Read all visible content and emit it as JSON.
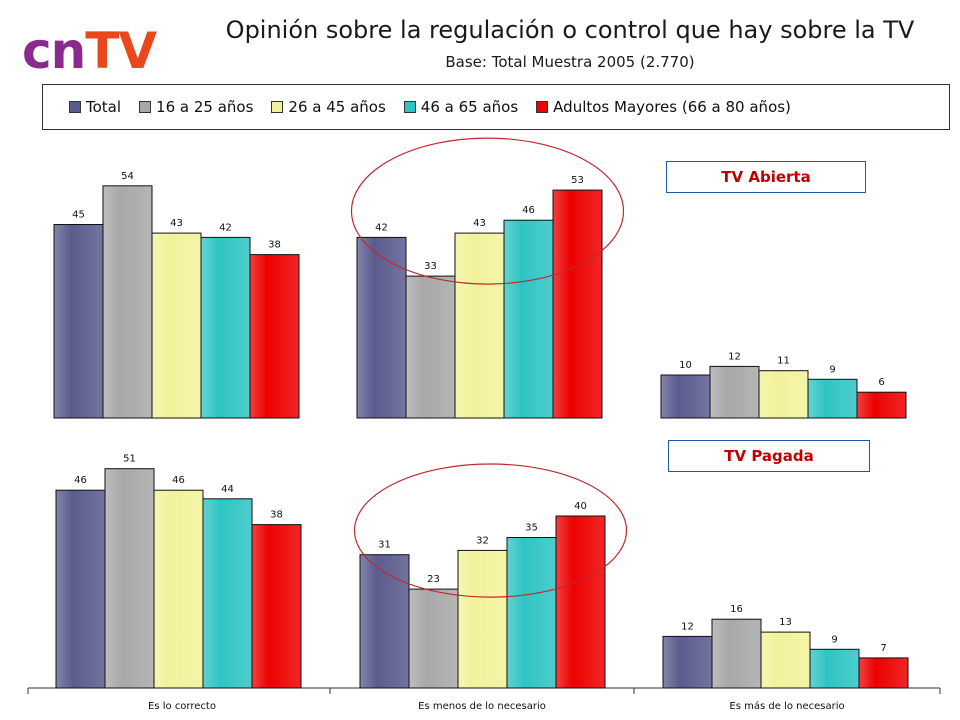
{
  "logo": {
    "part1": "cn",
    "part2": "TV"
  },
  "header": {
    "title": "Opinión sobre la regulación o control que hay sobre la TV",
    "subtitle": "Base: Total Muestra 2005 (2.770)"
  },
  "panel_labels": [
    "TV Abierta",
    "TV Pagada"
  ],
  "colors": {
    "Total": "#5b5b8f",
    "16 a 25 años": "#a8a8a8",
    "26 a 45 años": "#f2f29a",
    "46 a 65 años": "#2fc4c4",
    "Adultos Mayores (66 a 80 años)": "#ee0000",
    "highlight_ellipse": "#c0282e"
  },
  "chart_data": [
    {
      "type": "bar",
      "panel": "TV Abierta",
      "categories": [
        "Es lo correcto",
        "Es menos de lo necesario",
        "Es más de lo necesario"
      ],
      "series": [
        {
          "name": "Total",
          "values": [
            45,
            42,
            10
          ]
        },
        {
          "name": "16 a 25 años",
          "values": [
            54,
            33,
            12
          ]
        },
        {
          "name": "26 a 45 años",
          "values": [
            43,
            43,
            11
          ]
        },
        {
          "name": "46 a 65 años",
          "values": [
            42,
            46,
            9
          ]
        },
        {
          "name": "Adultos Mayores (66 a 80 años)",
          "values": [
            38,
            53,
            6
          ]
        }
      ],
      "legend": "top",
      "grid": false,
      "highlight_category": "Es menos de lo necesario"
    },
    {
      "type": "bar",
      "panel": "TV Pagada",
      "categories": [
        "Es lo correcto",
        "Es menos de lo necesario",
        "Es más de lo necesario"
      ],
      "series": [
        {
          "name": "Total",
          "values": [
            46,
            31,
            12
          ]
        },
        {
          "name": "16 a 25 años",
          "values": [
            51,
            23,
            16
          ]
        },
        {
          "name": "26 a 45 años",
          "values": [
            46,
            32,
            13
          ]
        },
        {
          "name": "46 a 65 años",
          "values": [
            44,
            35,
            9
          ]
        },
        {
          "name": "Adultos Mayores (66 a 80 años)",
          "values": [
            38,
            40,
            7
          ]
        }
      ],
      "legend": "top",
      "grid": false,
      "highlight_category": "Es menos de lo necesario"
    }
  ]
}
